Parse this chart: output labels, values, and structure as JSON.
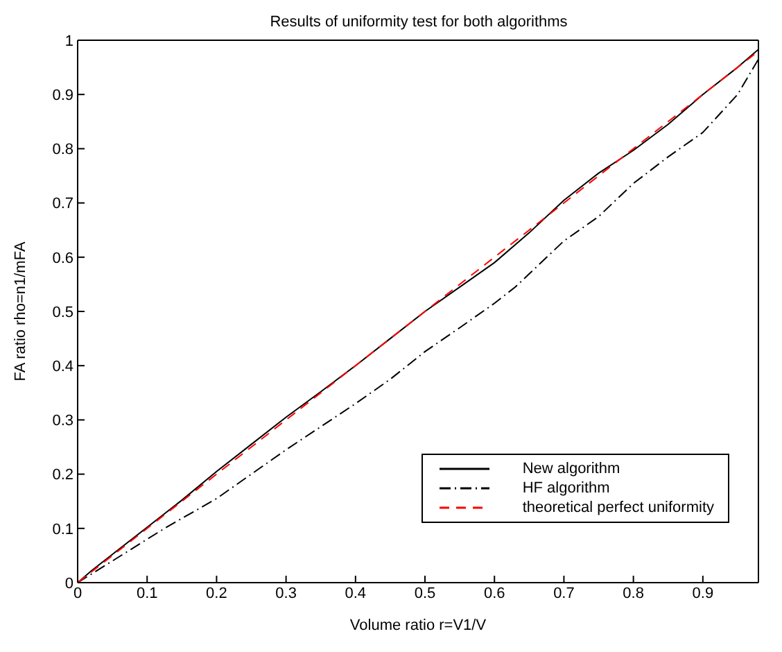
{
  "chart_data": {
    "type": "line",
    "title": "Results of uniformity test for both algorithms",
    "xlabel": "Volume ratio r=V1/V",
    "ylabel": "FA ratio rho=n1/mFA",
    "series": [
      {
        "name": "New algorithm",
        "color": "#000000",
        "line_style": "solid",
        "x": [
          0,
          0.02,
          0.05,
          0.1,
          0.15,
          0.2,
          0.25,
          0.3,
          0.35,
          0.4,
          0.45,
          0.5,
          0.55,
          0.6,
          0.65,
          0.7,
          0.75,
          0.8,
          0.85,
          0.9,
          0.95,
          0.98
        ],
        "values": [
          0,
          0.022,
          0.052,
          0.102,
          0.152,
          0.205,
          0.255,
          0.305,
          0.352,
          0.4,
          0.45,
          0.5,
          0.545,
          0.59,
          0.645,
          0.705,
          0.755,
          0.797,
          0.845,
          0.9,
          0.95,
          0.983
        ]
      },
      {
        "name": "HF algorithm",
        "color": "#000000",
        "line_style": "dashdot",
        "x": [
          0,
          0.05,
          0.1,
          0.125,
          0.2,
          0.25,
          0.3,
          0.4,
          0.45,
          0.5,
          0.55,
          0.6,
          0.63,
          0.7,
          0.75,
          0.8,
          0.85,
          0.9,
          0.95,
          0.98
        ],
        "values": [
          0,
          0.04,
          0.08,
          0.1,
          0.155,
          0.2,
          0.245,
          0.33,
          0.375,
          0.426,
          0.47,
          0.515,
          0.545,
          0.63,
          0.675,
          0.736,
          0.785,
          0.83,
          0.9,
          0.965
        ]
      },
      {
        "name": "theoretical perfect uniformity",
        "color": "#ff0000",
        "line_style": "dashed",
        "x": [
          0,
          0.98
        ],
        "values": [
          0,
          0.98
        ]
      }
    ],
    "xlim": [
      0,
      0.98
    ],
    "ylim": [
      0,
      1
    ],
    "xticks": [
      0,
      0.1,
      0.2,
      0.3,
      0.4,
      0.5,
      0.6,
      0.7,
      0.8,
      0.9
    ],
    "yticks": [
      0,
      0.1,
      0.2,
      0.3,
      0.4,
      0.5,
      0.6,
      0.7,
      0.8,
      0.9,
      1
    ],
    "grid": false,
    "legend": "bottom right",
    "marker": "none"
  }
}
